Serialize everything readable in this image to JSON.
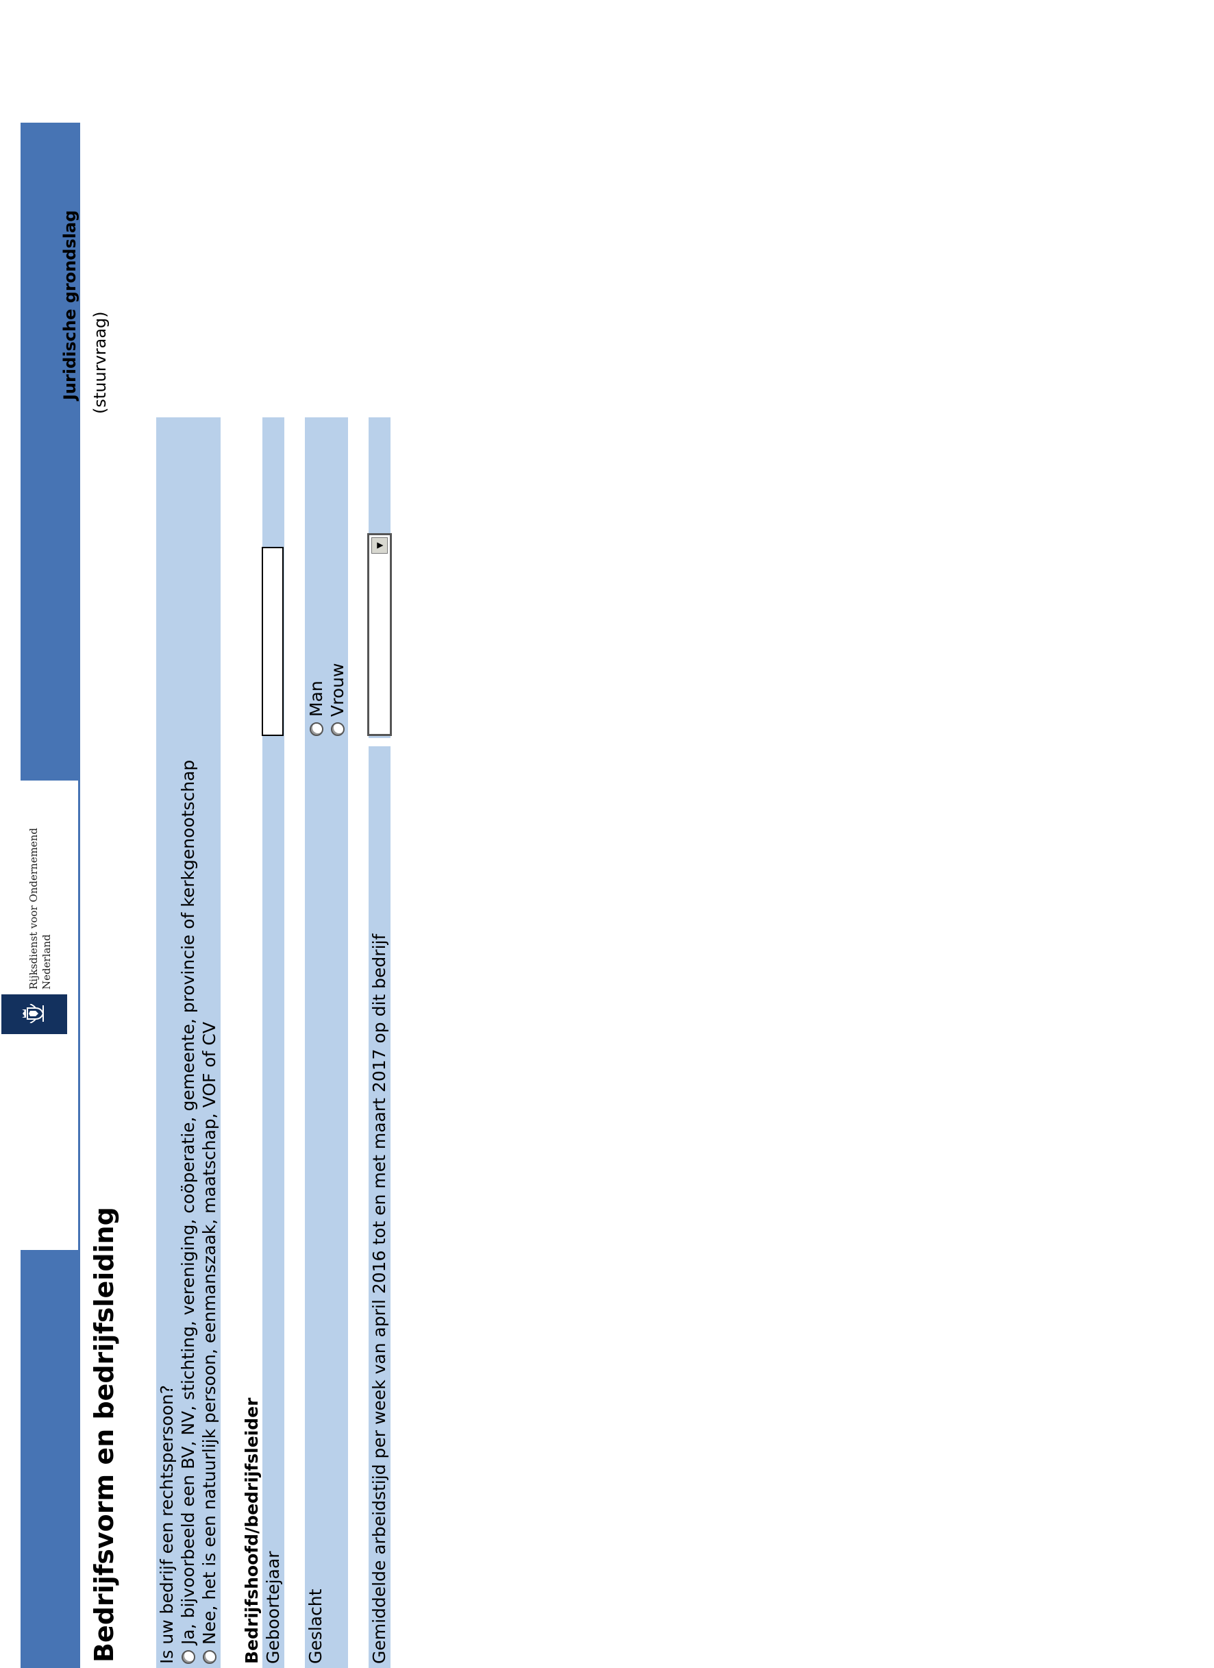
{
  "header": {
    "organization": [
      "Rijksdienst voor Ondernemend",
      "Nederland"
    ],
    "logo_icon": "dutch-coat-of-arms-icon",
    "band_color": "#4774b4",
    "logo_color": "#13315e"
  },
  "page_title": "Bedrijfsvorm en bedrijfsleiding",
  "section": {
    "title": "Juridische grondslag",
    "subtitle": "(stuurvraag)"
  },
  "row_color": "#b9d0ea",
  "questions": {
    "legal_person": {
      "label": "Is uw bedrijf een rechtspersoon?",
      "options": [
        "Ja, bijvoorbeeld een BV, NV, stichting, vereniging, coöperatie, gemeente, provincie of kerkgenootschap",
        "Nee, het is een natuurlijk persoon, eenmanszaak, maatschap, VOF of CV"
      ]
    },
    "head_title": "Bedrijfshoofd/bedrijfsleider",
    "birth_year": {
      "label": "Geboortejaar",
      "value": ""
    },
    "gender": {
      "label": "Geslacht",
      "options": [
        "Man",
        "Vrouw"
      ]
    },
    "working_hours": {
      "label": "Gemiddelde arbeidstijd per week van april 2016 tot en met maart 2017 op dit bedrijf",
      "selected": ""
    }
  }
}
